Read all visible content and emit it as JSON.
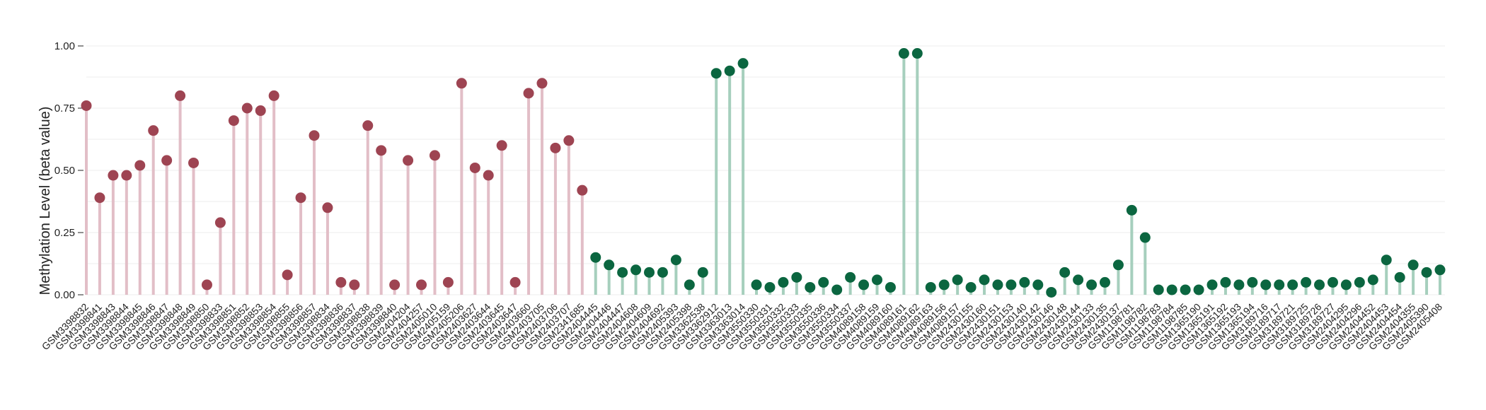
{
  "chart_data": {
    "type": "lollipop",
    "title": "",
    "xlabel": "",
    "ylabel": "Methylation Level (beta value)",
    "ylim": [
      0,
      1
    ],
    "yticks": [
      0.0,
      0.25,
      0.5,
      0.75,
      1.0
    ],
    "ytick_labels": [
      "0.00",
      "0.25",
      "0.50",
      "0.75",
      "1.00"
    ],
    "grid": "horizontal",
    "colors": {
      "group_a": "#9e4452",
      "group_a_stem": "#e2bec7",
      "group_b": "#0b6640",
      "group_b_stem": "#a6cfbd"
    },
    "categories": [
      "GSM3398832",
      "GSM3398841",
      "GSM3398843",
      "GSM3398844",
      "GSM3398845",
      "GSM3398846",
      "GSM3398847",
      "GSM3398848",
      "GSM3398849",
      "GSM3398850",
      "GSM3398833",
      "GSM3398851",
      "GSM3398852",
      "GSM3398853",
      "GSM3398854",
      "GSM3398855",
      "GSM3398856",
      "GSM3398857",
      "GSM3398834",
      "GSM3398836",
      "GSM3398837",
      "GSM3398838",
      "GSM3398839",
      "GSM3398840",
      "GSM2404204",
      "GSM2404257",
      "GSM2405010",
      "GSM2405159",
      "GSM2405206",
      "GSM2403627",
      "GSM2403644",
      "GSM2403645",
      "GSM2403647",
      "GSM2403660",
      "GSM2403705",
      "GSM2403706",
      "GSM2403707",
      "GSM2341685",
      "GSM2404445",
      "GSM2404446",
      "GSM2404447",
      "GSM2404608",
      "GSM2404609",
      "GSM2404692",
      "GSM2405393",
      "GSM2405398",
      "GSM3362538",
      "GSM3362912",
      "GSM3363013",
      "GSM3363014",
      "GSM3550330",
      "GSM3550331",
      "GSM3550332",
      "GSM3550333",
      "GSM3550335",
      "GSM3550336",
      "GSM3550334",
      "GSM3550337",
      "GSM4089158",
      "GSM4089159",
      "GSM4089160",
      "GSM4089161",
      "GSM4089162",
      "GSM4089163",
      "GSM4089156",
      "GSM4089157",
      "GSM2430155",
      "GSM2430160",
      "GSM2430151",
      "GSM2430153",
      "GSM2430140",
      "GSM2430142",
      "GSM2430146",
      "GSM2430148",
      "GSM2430144",
      "GSM2430133",
      "GSM2430135",
      "GSM2430137",
      "GSM1198781",
      "GSM1198782",
      "GSM1198783",
      "GSM1198784",
      "GSM1198785",
      "GSM1365190",
      "GSM1365191",
      "GSM1365192",
      "GSM1365193",
      "GSM1365194",
      "GSM3189716",
      "GSM3189717",
      "GSM3189721",
      "GSM3189725",
      "GSM3189726",
      "GSM3189727",
      "GSM2404295",
      "GSM2404296",
      "GSM2404452",
      "GSM2404453",
      "GSM2404454",
      "GSM2404355",
      "GSM2405390",
      "GSM2405408"
    ],
    "values": [
      0.76,
      0.39,
      0.48,
      0.48,
      0.52,
      0.66,
      0.54,
      0.8,
      0.53,
      0.04,
      0.29,
      0.7,
      0.75,
      0.74,
      0.8,
      0.08,
      0.39,
      0.64,
      0.35,
      0.05,
      0.04,
      0.68,
      0.58,
      0.04,
      0.54,
      0.04,
      0.56,
      0.05,
      0.85,
      0.51,
      0.48,
      0.6,
      0.05,
      0.81,
      0.85,
      0.59,
      0.62,
      0.42,
      0.15,
      0.12,
      0.09,
      0.1,
      0.09,
      0.09,
      0.14,
      0.04,
      0.09,
      0.89,
      0.9,
      0.93,
      0.04,
      0.03,
      0.05,
      0.07,
      0.03,
      0.05,
      0.02,
      0.07,
      0.04,
      0.06,
      0.03,
      0.97,
      0.97,
      0.03,
      0.04,
      0.06,
      0.03,
      0.06,
      0.04,
      0.04,
      0.05,
      0.04,
      0.01,
      0.09,
      0.06,
      0.04,
      0.05,
      0.12,
      0.34,
      0.23,
      0.02,
      0.02,
      0.02,
      0.02,
      0.04,
      0.05,
      0.04,
      0.05,
      0.04,
      0.04,
      0.04,
      0.05,
      0.04,
      0.05,
      0.04,
      0.05,
      0.06,
      0.14,
      0.07,
      0.12,
      0.09,
      0.1
    ],
    "group_split_index": 38
  }
}
